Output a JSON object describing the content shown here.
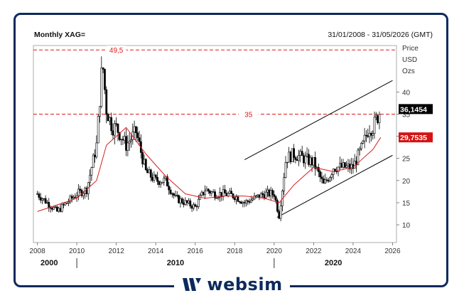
{
  "header": {
    "title": "Monthly XAG=",
    "date_range": "31/01/2008 - 31/05/2026 (GMT)"
  },
  "brand": {
    "name": "websim",
    "color": "#0c2a5c"
  },
  "chart_data": {
    "type": "line",
    "series": [
      {
        "style": "candlestick",
        "color": "#000000",
        "x": [
          2008.0,
          2008.5,
          2009.0,
          2009.5,
          2010.0,
          2010.5,
          2011.0,
          2011.3,
          2011.5,
          2011.8,
          2012.0,
          2012.5,
          2013.0,
          2013.5,
          2014.0,
          2014.5,
          2015.0,
          2015.5,
          2016.0,
          2016.5,
          2017.0,
          2017.5,
          2018.0,
          2018.5,
          2019.0,
          2019.5,
          2020.0,
          2020.25,
          2020.6,
          2021.0,
          2021.5,
          2022.0,
          2022.5,
          2022.8,
          2023.0,
          2023.5,
          2024.0,
          2024.5,
          2024.8,
          2025.0,
          2025.4
        ],
        "values": [
          17,
          15,
          13,
          15,
          17,
          18,
          28,
          47,
          36,
          32,
          32,
          28,
          31,
          22,
          20,
          20,
          16,
          15,
          14,
          18,
          17,
          17,
          16.5,
          15,
          16,
          17,
          17,
          12,
          25,
          26,
          25,
          24,
          19,
          21,
          23,
          23,
          23,
          28,
          32,
          32,
          36
        ]
      },
      {
        "name": "",
        "style": "moving-average",
        "color": "#d91e1e",
        "x": [
          2008.0,
          2009.0,
          2010.0,
          2011.0,
          2011.5,
          2012.5,
          2013.5,
          2014.5,
          2015.5,
          2016.5,
          2017.5,
          2018.5,
          2019.5,
          2020.25,
          2021.0,
          2022.0,
          2023.0,
          2024.0,
          2025.0,
          2025.4
        ],
        "values": [
          13,
          14.5,
          16,
          20,
          28,
          32,
          26,
          21,
          17,
          16,
          16.5,
          16.5,
          16,
          15,
          19,
          23,
          22,
          23,
          27,
          29.75
        ]
      }
    ],
    "xlim": [
      2007.8,
      2026.2
    ],
    "ylim": [
      6,
      50.5
    ],
    "y_axis": {
      "title_lines": [
        "Price",
        "USD",
        "Ozs"
      ],
      "ticks": [
        10,
        15,
        20,
        25,
        30,
        35,
        40
      ],
      "side": "right"
    },
    "x_axis": {
      "ticks": [
        2008,
        2010,
        2012,
        2014,
        2016,
        2018,
        2020,
        2022,
        2024,
        2026
      ],
      "period_labels": [
        "2000",
        "2010",
        "2020"
      ]
    },
    "levels": [
      {
        "value": 49.5,
        "label": "49,5",
        "color": "#d91e1e"
      },
      {
        "value": 35,
        "label": "35",
        "color": "#d91e1e"
      }
    ],
    "price_tags": [
      {
        "value": 36.1454,
        "label": "36,1454",
        "bg": "#000000",
        "fg": "#ffffff"
      },
      {
        "value": 29.7535,
        "label": "29,7535",
        "bg": "#d41414",
        "fg": "#ffffff"
      }
    ],
    "channel_lines": [
      {
        "x": [
          2018.5,
          2026.0
        ],
        "values": [
          24.7,
          42.6
        ]
      },
      {
        "x": [
          2020.15,
          2026.0
        ],
        "values": [
          11.7,
          25.7
        ]
      }
    ],
    "grid": false
  }
}
